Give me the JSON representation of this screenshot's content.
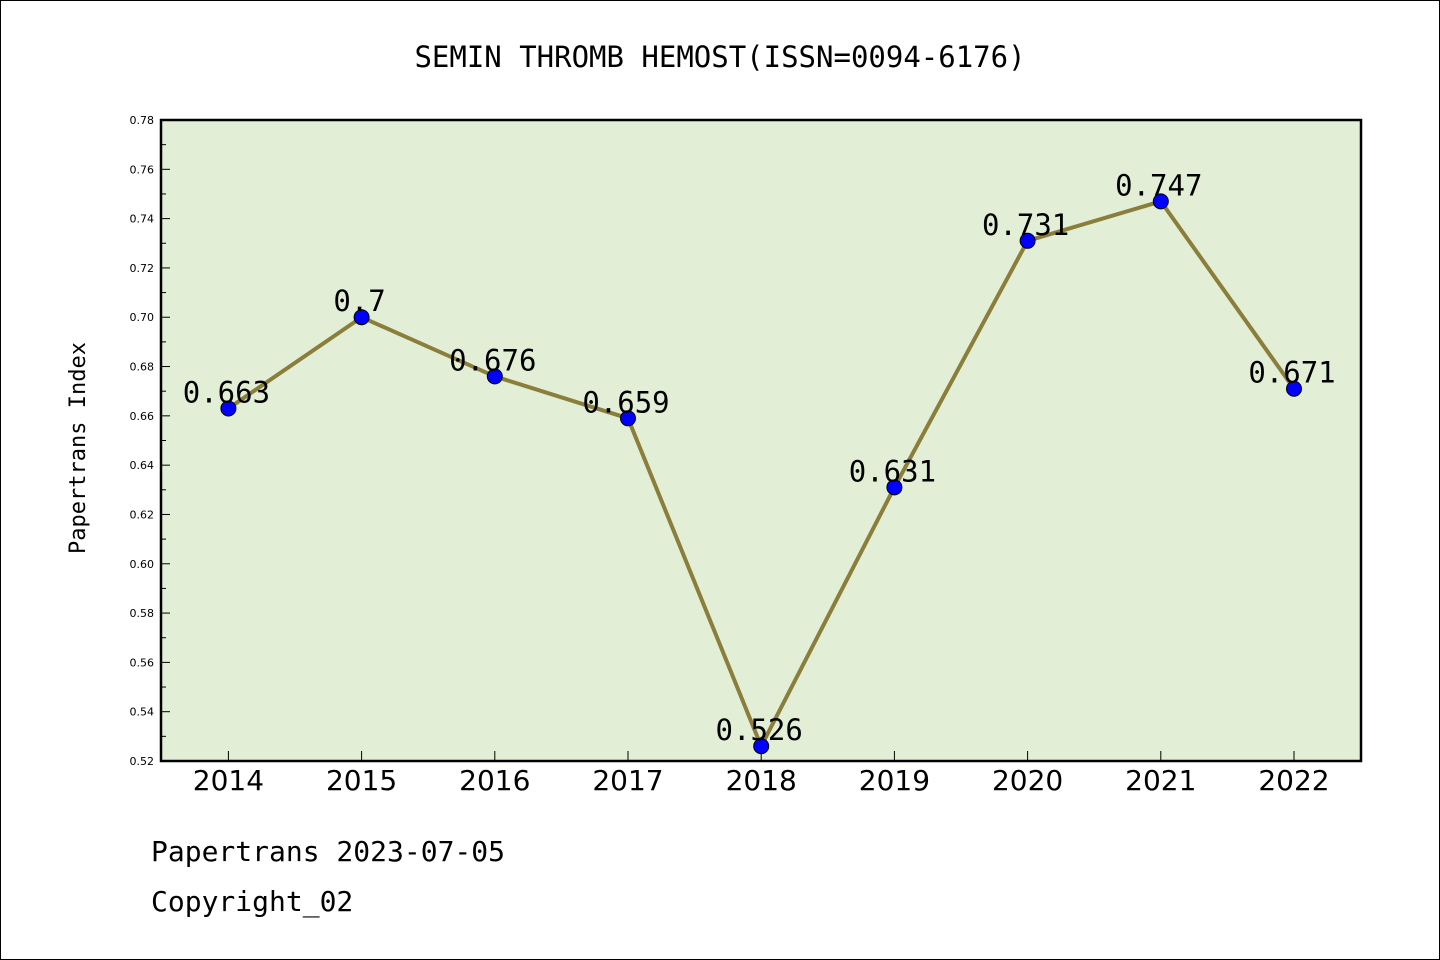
{
  "chart_data": {
    "type": "line",
    "title": "SEMIN THROMB HEMOST(ISSN=0094-6176)",
    "xlabel": "",
    "ylabel": "Papertrans Index",
    "categories": [
      "2014",
      "2015",
      "2016",
      "2017",
      "2018",
      "2019",
      "2020",
      "2021",
      "2022"
    ],
    "values": [
      0.663,
      0.7,
      0.676,
      0.659,
      0.526,
      0.631,
      0.731,
      0.747,
      0.671
    ],
    "data_labels": [
      "0.663",
      "0.7",
      "0.676",
      "0.659",
      "0.526",
      "0.631",
      "0.731",
      "0.747",
      "0.671"
    ],
    "ylim": [
      0.52,
      0.78
    ],
    "yticks": [
      "0.52",
      "0.54",
      "0.56",
      "0.58",
      "0.60",
      "0.62",
      "0.64",
      "0.66",
      "0.68",
      "0.70",
      "0.72",
      "0.74",
      "0.76",
      "0.78"
    ],
    "grid": false,
    "colors": {
      "plot_background": "#e2efd6",
      "line": "#8b7d3a",
      "marker": "#0000ff"
    }
  },
  "footer": {
    "line1": "Papertrans 2023-07-05",
    "line2": "Copyright_02"
  }
}
